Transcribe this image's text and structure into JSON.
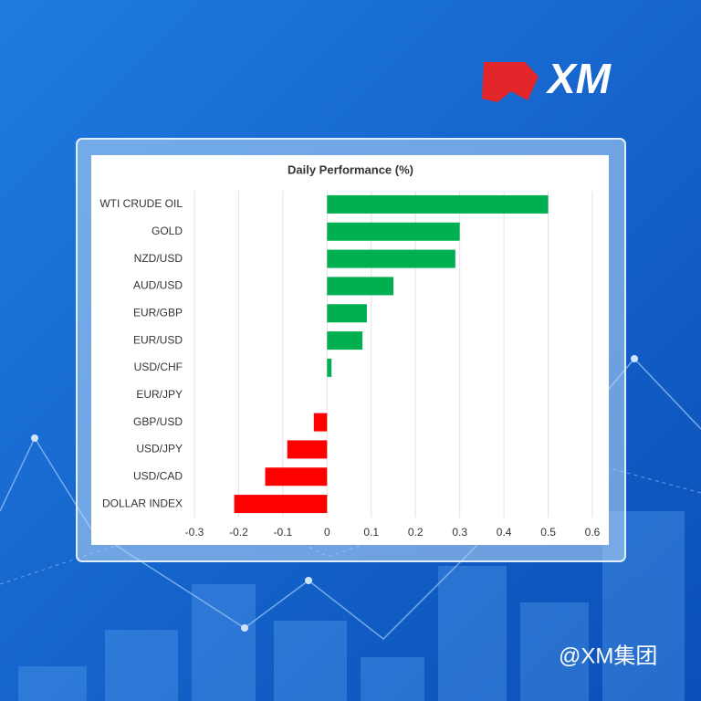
{
  "logo": "XM",
  "watermark": "@XM集团",
  "chart_data": {
    "type": "barh",
    "title": "Daily Performance (%)",
    "categories": [
      "WTI CRUDE OIL",
      "GOLD",
      "NZD/USD",
      "AUD/USD",
      "EUR/GBP",
      "EUR/USD",
      "USD/CHF",
      "EUR/JPY",
      "GBP/USD",
      "USD/JPY",
      "USD/CAD",
      "DOLLAR INDEX"
    ],
    "values": [
      0.5,
      0.3,
      0.29,
      0.15,
      0.09,
      0.08,
      0.01,
      0,
      -0.03,
      -0.09,
      -0.14,
      -0.21
    ],
    "colors": [
      "#00b050",
      "#00b050",
      "#00b050",
      "#00b050",
      "#00b050",
      "#00b050",
      "#00b050",
      "#00b050",
      "#ff0000",
      "#ff0000",
      "#ff0000",
      "#ff0000"
    ],
    "xlim": [
      -0.3,
      0.6
    ],
    "xticks": [
      -0.3,
      -0.2,
      -0.1,
      0,
      0.1,
      0.2,
      0.3,
      0.4,
      0.5,
      0.6
    ],
    "grid": true
  }
}
